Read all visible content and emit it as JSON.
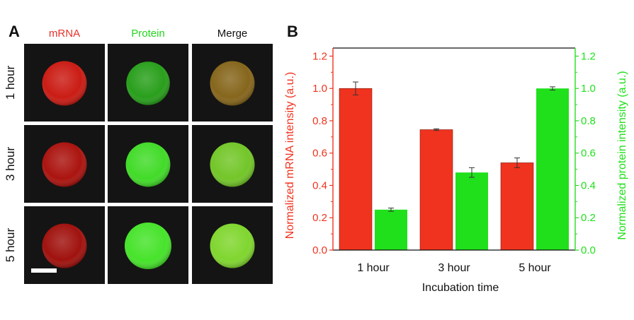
{
  "panel_a": {
    "letter": "A",
    "columns": [
      {
        "label": "mRNA",
        "color": "#e8322a"
      },
      {
        "label": "Protein",
        "color": "#22d61e"
      },
      {
        "label": "Merge",
        "color": "#111111"
      }
    ],
    "rows": [
      "1 hour",
      "3 hour",
      "5 hour"
    ],
    "cells": [
      [
        {
          "fill": "#d41c14",
          "intensity": 1.0
        },
        {
          "fill": "#2aa61c",
          "intensity": 0.25
        },
        {
          "fill": "#8c6a1c",
          "intensity": 1.0
        }
      ],
      [
        {
          "fill": "#b3140f",
          "intensity": 0.75
        },
        {
          "fill": "#44e62a",
          "intensity": 0.48
        },
        {
          "fill": "#78d02a",
          "intensity": 0.75
        }
      ],
      [
        {
          "fill": "#a8120e",
          "intensity": 0.54
        },
        {
          "fill": "#4aee2c",
          "intensity": 1.0
        },
        {
          "fill": "#86e030",
          "intensity": 0.54
        }
      ]
    ],
    "background": "#141414"
  },
  "panel_b": {
    "letter": "B"
  },
  "chart_data": {
    "type": "bar",
    "categories": [
      "1 hour",
      "3 hour",
      "5 hour"
    ],
    "xlabel": "Incubation time",
    "ylabel": "Normalized mRNA intensity (a.u.)",
    "y2label": "Normalized protein intensity (a.u.)",
    "ylim": [
      0,
      1.25
    ],
    "y2lim": [
      0,
      1.25
    ],
    "yticks": [
      "0.0",
      "0.2",
      "0.4",
      "0.6",
      "0.8",
      "1.0",
      "1.2"
    ],
    "series": [
      {
        "axis": "left",
        "color": "#f0331e",
        "values": [
          1.0,
          0.745,
          0.54
        ],
        "errors": [
          0.04,
          0.005,
          0.03
        ]
      },
      {
        "axis": "right",
        "color": "#20e01c",
        "values": [
          0.25,
          0.48,
          1.0
        ],
        "errors": [
          0.01,
          0.03,
          0.01
        ]
      }
    ],
    "left_axis_color": "#f0331e",
    "right_axis_color": "#20e01c",
    "grid": false
  }
}
